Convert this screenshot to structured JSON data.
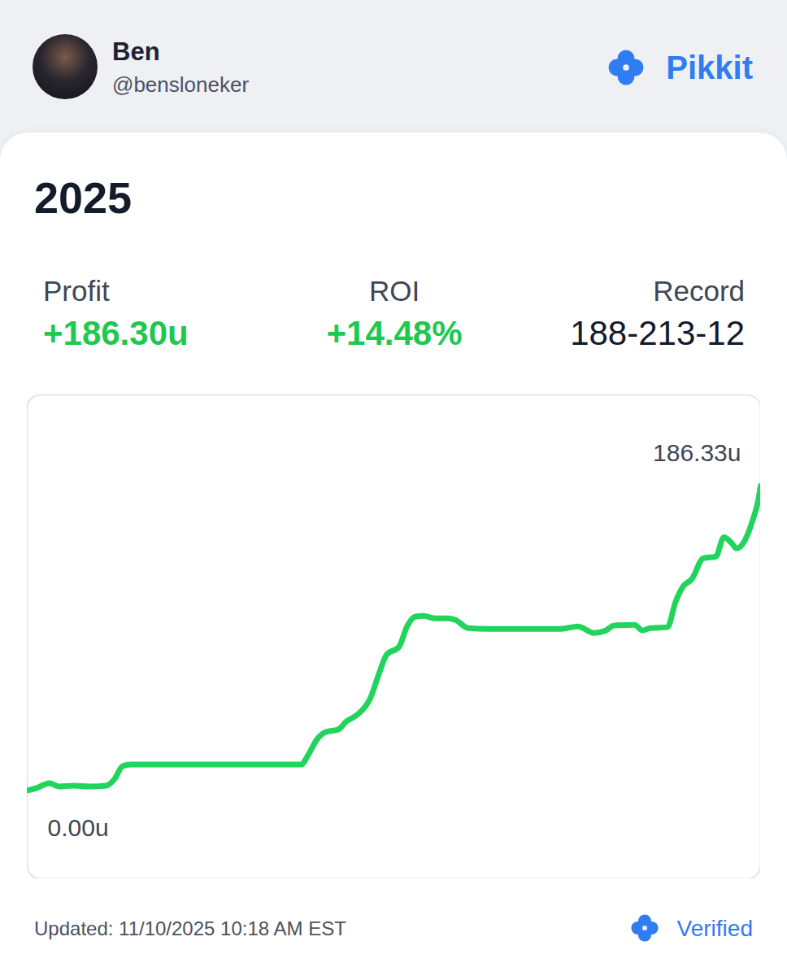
{
  "header": {
    "name": "Ben",
    "handle": "@bensloneker",
    "brand": "Pikkit"
  },
  "card": {
    "title": "2025",
    "stats": [
      {
        "label": "Profit",
        "value": "+186.30u"
      },
      {
        "label": "ROI",
        "value": "+14.48%"
      },
      {
        "label": "Record",
        "value": "188-213-12"
      }
    ]
  },
  "footer": {
    "updated": "Updated: 11/10/2025 10:18 AM EST",
    "badge": "Verified"
  },
  "chart_data": {
    "type": "line",
    "x": [
      0,
      1.3,
      3.0,
      4.3,
      6.3,
      8.5,
      10.8,
      11.9,
      13.0,
      14.1,
      24.1,
      37.4,
      38.2,
      39.6,
      40.7,
      42.4,
      43.5,
      45.1,
      46.8,
      47.9,
      49.0,
      50.7,
      51.8,
      52.9,
      54.0,
      55.7,
      57.3,
      58.4,
      60.1,
      62.9,
      72.8,
      75.1,
      77.3,
      78.9,
      80.0,
      82.8,
      83.9,
      85.0,
      87.3,
      88.4,
      89.5,
      90.6,
      92.2,
      93.9,
      95.0,
      96.1,
      96.7,
      97.8,
      98.9,
      99.7,
      100
    ],
    "values": [
      0,
      1.5,
      4.5,
      2.5,
      3.0,
      2.5,
      3.0,
      7.0,
      14.9,
      15.9,
      15.9,
      15.9,
      20.9,
      31.8,
      35.8,
      37.3,
      42.2,
      46.7,
      56.6,
      70.6,
      83.0,
      87.9,
      100.4,
      106.3,
      106.8,
      105.3,
      105.3,
      104.3,
      99.4,
      98.9,
      98.9,
      100.4,
      96.4,
      97.9,
      100.9,
      101.4,
      97.9,
      99.4,
      99.9,
      115.3,
      125.2,
      129.2,
      142.1,
      143.1,
      155.0,
      151.1,
      148.1,
      152.5,
      165.0,
      178.0,
      186.33
    ],
    "color": "#22d35c",
    "xlim": [
      0,
      100
    ],
    "ylim": [
      -54,
      242
    ],
    "xticks": [],
    "yticks": [],
    "grid": false,
    "tick_labels": false,
    "annotations": [
      "186.33u",
      "0.00u"
    ]
  }
}
